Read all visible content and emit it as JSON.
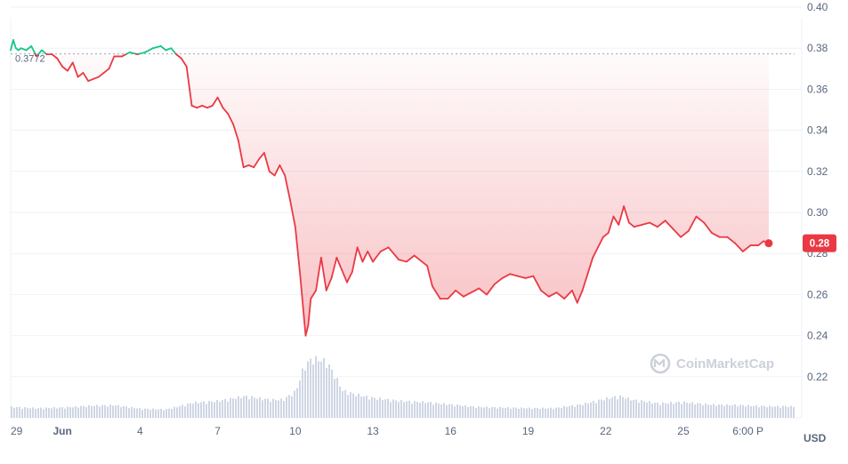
{
  "chart_data": {
    "type": "line",
    "title": "",
    "xlabel": "",
    "ylabel": "",
    "unit": "USD",
    "ylim": [
      0.2,
      0.4
    ],
    "y_ticks": [
      "0.40",
      "0.38",
      "0.36",
      "0.34",
      "0.32",
      "0.30",
      "0.28",
      "0.26",
      "0.24",
      "0.22"
    ],
    "y_tick_values": [
      0.4,
      0.38,
      0.36,
      0.34,
      0.32,
      0.3,
      0.28,
      0.26,
      0.24,
      0.22
    ],
    "x_ticks": [
      "29",
      "Jun",
      "4",
      "7",
      "10",
      "13",
      "16",
      "19",
      "22",
      "25",
      "6:00 P"
    ],
    "x_tick_days": [
      -1,
      1,
      4,
      7,
      10,
      13,
      16,
      19,
      22,
      25,
      27.5
    ],
    "xlim_days": [
      -1,
      29.3
    ],
    "reference_price": 0.3772,
    "reference_label": "0.3772",
    "current_price_label": "0.28",
    "current_price": 0.285,
    "colors": {
      "up": "#16c784",
      "down": "#ea3943",
      "volume": "#cfd6e4",
      "grid": "#eff2f5",
      "badge": "#ea3943"
    },
    "grid": true,
    "watermark": "CoinMarketCap",
    "watermark_icon": "coinmarketcap-logo-icon",
    "series": [
      {
        "x_days": [
          -1,
          -0.9,
          -0.8,
          -0.7,
          -0.6,
          -0.4,
          -0.2,
          0,
          0.2,
          0.4,
          0.6,
          0.8,
          1,
          1.2,
          1.4,
          1.6,
          1.8,
          2,
          2.2,
          2.4,
          2.6,
          2.8,
          3,
          3.3,
          3.6,
          3.9,
          4.2,
          4.5,
          4.8,
          5,
          5.2,
          5.4,
          5.6,
          5.8,
          6,
          6.2,
          6.4,
          6.6,
          6.8,
          7,
          7.2,
          7.4,
          7.6,
          7.8,
          8,
          8.2,
          8.4,
          8.6,
          8.8,
          9,
          9.2,
          9.4,
          9.6,
          9.8,
          10,
          10.2,
          10.4,
          10.5,
          10.6,
          10.8,
          11,
          11.2,
          11.4,
          11.6,
          11.8,
          12,
          12.2,
          12.4,
          12.6,
          12.8,
          13,
          13.3,
          13.6,
          14,
          14.3,
          14.6,
          14.9,
          15.1,
          15.3,
          15.6,
          15.9,
          16.2,
          16.5,
          16.8,
          17.1,
          17.4,
          17.7,
          18,
          18.3,
          18.6,
          18.9,
          19.2,
          19.5,
          19.8,
          20.1,
          20.4,
          20.7,
          20.9,
          21.1,
          21.3,
          21.5,
          21.7,
          21.9,
          22.1,
          22.3,
          22.5,
          22.7,
          22.9,
          23.1,
          23.4,
          23.7,
          24,
          24.3,
          24.6,
          24.9,
          25.2,
          25.5,
          25.8,
          26.1,
          26.4,
          26.7,
          27,
          27.3,
          27.6,
          27.9,
          28.1,
          28.3
        ],
        "values": [
          0.379,
          0.384,
          0.38,
          0.379,
          0.38,
          0.379,
          0.381,
          0.376,
          0.379,
          0.377,
          0.377,
          0.375,
          0.371,
          0.369,
          0.373,
          0.366,
          0.368,
          0.364,
          0.365,
          0.366,
          0.368,
          0.37,
          0.376,
          0.376,
          0.378,
          0.377,
          0.378,
          0.38,
          0.381,
          0.379,
          0.38,
          0.377,
          0.375,
          0.371,
          0.352,
          0.351,
          0.352,
          0.351,
          0.352,
          0.356,
          0.351,
          0.348,
          0.343,
          0.335,
          0.322,
          0.323,
          0.322,
          0.326,
          0.329,
          0.32,
          0.318,
          0.323,
          0.318,
          0.306,
          0.293,
          0.268,
          0.24,
          0.245,
          0.258,
          0.262,
          0.278,
          0.262,
          0.268,
          0.278,
          0.272,
          0.266,
          0.271,
          0.283,
          0.276,
          0.281,
          0.276,
          0.281,
          0.283,
          0.277,
          0.276,
          0.279,
          0.276,
          0.274,
          0.264,
          0.258,
          0.258,
          0.262,
          0.259,
          0.261,
          0.263,
          0.26,
          0.265,
          0.268,
          0.27,
          0.269,
          0.268,
          0.269,
          0.262,
          0.259,
          0.261,
          0.258,
          0.262,
          0.256,
          0.262,
          0.27,
          0.278,
          0.283,
          0.288,
          0.29,
          0.298,
          0.294,
          0.303,
          0.295,
          0.293,
          0.294,
          0.295,
          0.293,
          0.296,
          0.292,
          0.288,
          0.291,
          0.298,
          0.295,
          0.29,
          0.288,
          0.288,
          0.285,
          0.281,
          0.284,
          0.284,
          0.286,
          0.285
        ]
      }
    ],
    "volume": {
      "x_days": [
        -1,
        0,
        1,
        2,
        3,
        4,
        5,
        6,
        7,
        8,
        9,
        9.5,
        10,
        10.3,
        10.6,
        10.9,
        11.2,
        11.5,
        11.8,
        12.2,
        12.6,
        13,
        14,
        15,
        16,
        17,
        18,
        19,
        20,
        21,
        22,
        22.5,
        23,
        24,
        25,
        26,
        27,
        28.3
      ],
      "values": [
        0.18,
        0.16,
        0.17,
        0.2,
        0.21,
        0.15,
        0.14,
        0.25,
        0.28,
        0.36,
        0.3,
        0.3,
        0.45,
        0.85,
        0.98,
        0.97,
        0.92,
        0.7,
        0.45,
        0.4,
        0.36,
        0.33,
        0.28,
        0.26,
        0.22,
        0.18,
        0.17,
        0.16,
        0.16,
        0.22,
        0.32,
        0.36,
        0.3,
        0.24,
        0.26,
        0.22,
        0.21,
        0.19
      ]
    }
  }
}
